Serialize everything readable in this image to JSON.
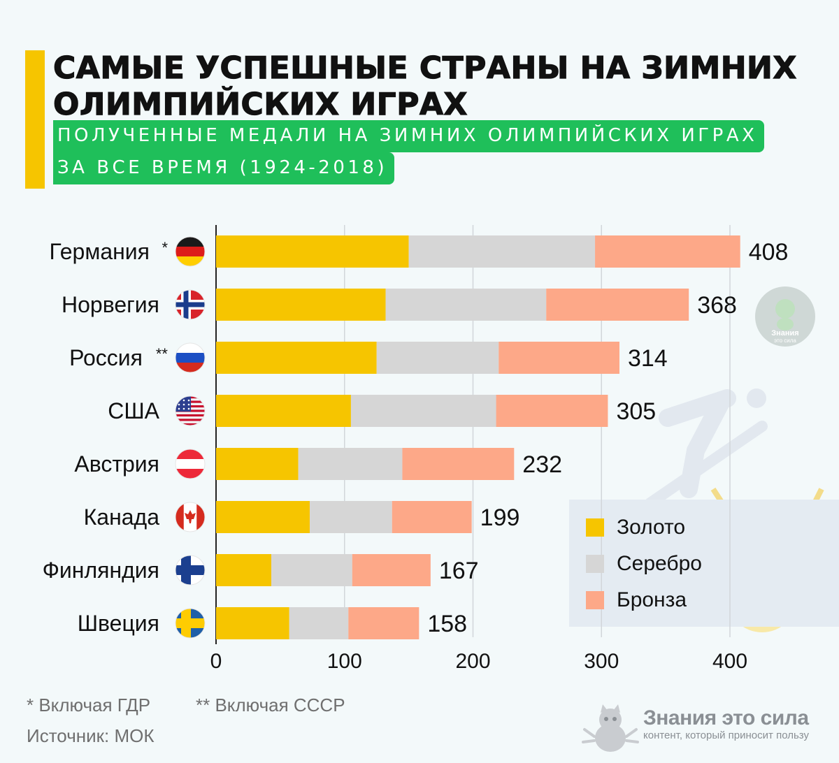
{
  "header": {
    "title": "САМЫЕ УСПЕШНЫЕ СТРАНЫ НА ЗИМНИХ ОЛИМПИЙСКИХ ИГРАХ",
    "subtitle_line1": "ПОЛУЧЕННЫЕ МЕДАЛИ НА ЗИМНИХ ОЛИМПИЙСКИХ ИГРАХ",
    "subtitle_line2": "ЗА ВСЕ ВРЕМЯ (1924-2018)"
  },
  "colors": {
    "accent": "#f6c500",
    "subtitle_bg": "#1fbf5a",
    "gold": "#f6c500",
    "silver": "#d6d6d6",
    "bronze": "#fda888"
  },
  "chart_data": {
    "type": "bar",
    "orientation": "horizontal",
    "stacked": true,
    "categories": [
      "Германия",
      "Норвегия",
      "Россия",
      "США",
      "Австрия",
      "Канада",
      "Финляндия",
      "Швеция"
    ],
    "category_marks": [
      "*",
      "",
      "**",
      "",
      "",
      "",
      "",
      ""
    ],
    "flags": [
      "flag-germany-icon",
      "flag-norway-icon",
      "flag-russia-icon",
      "flag-usa-icon",
      "flag-austria-icon",
      "flag-canada-icon",
      "flag-finland-icon",
      "flag-sweden-icon"
    ],
    "series": [
      {
        "name": "Золото",
        "values": [
          150,
          132,
          125,
          105,
          64,
          73,
          43,
          57
        ]
      },
      {
        "name": "Серебро",
        "values": [
          145,
          125,
          95,
          113,
          81,
          64,
          63,
          46
        ]
      },
      {
        "name": "Бронза",
        "values": [
          113,
          111,
          94,
          87,
          87,
          62,
          61,
          55
        ]
      }
    ],
    "totals": [
      "408",
      "368",
      "314",
      "305",
      "232",
      "199",
      "167",
      "158"
    ],
    "xlim": [
      0,
      410
    ],
    "xticks": [
      "0",
      "100",
      "200",
      "300",
      "400"
    ],
    "grid": true,
    "legend_position": "bottom-right"
  },
  "footnotes": {
    "gdr": "* Включая ГДР",
    "ussr": "** Включая СССР",
    "source": "Источник: МОК"
  },
  "brand": {
    "name": "Знания это сила",
    "tagline": "контент, который приносит пользу",
    "badge_line1": "Знания",
    "badge_line2": "это сила"
  }
}
